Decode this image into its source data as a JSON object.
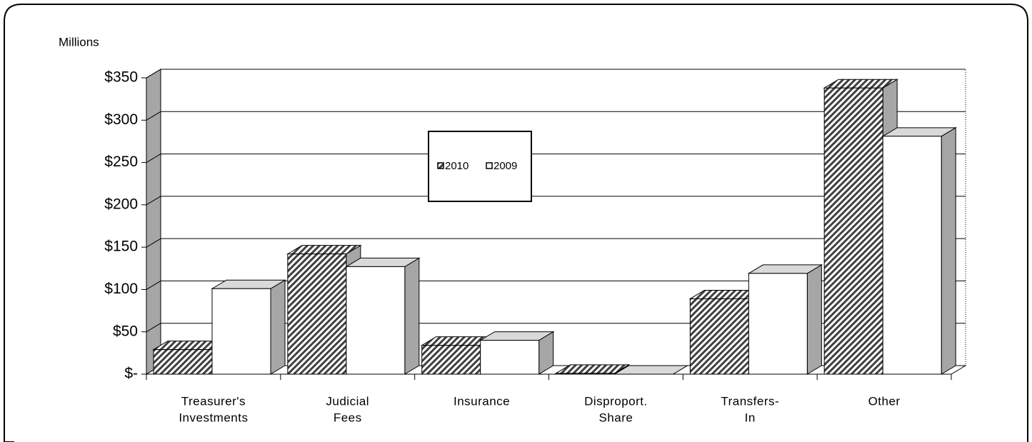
{
  "chart_data": {
    "type": "bar3d",
    "y_axis_label": "Millions",
    "categories": [
      [
        "Treasurer's",
        "Investments"
      ],
      [
        "Judicial",
        "Fees"
      ],
      [
        "Insurance"
      ],
      [
        "Disproport.",
        "Share"
      ],
      [
        "Transfers-",
        "In"
      ],
      [
        "Other"
      ]
    ],
    "series": [
      {
        "name": "2010",
        "color": "#404040",
        "values": [
          29,
          142,
          34,
          1,
          89,
          338
        ]
      },
      {
        "name": "2009",
        "color": "#ffffff",
        "values": [
          101,
          127,
          40,
          0,
          119,
          281
        ]
      }
    ],
    "ylim": [
      0,
      350
    ],
    "yticks": [
      {
        "value": 0,
        "label": "$-"
      },
      {
        "value": 50,
        "label": "$50"
      },
      {
        "value": 100,
        "label": "$100"
      },
      {
        "value": 150,
        "label": "$150"
      },
      {
        "value": 200,
        "label": "$200"
      },
      {
        "value": 250,
        "label": "$250"
      },
      {
        "value": 300,
        "label": "$300"
      },
      {
        "value": 350,
        "label": "$350"
      }
    ],
    "grid": true,
    "legend": "center"
  }
}
